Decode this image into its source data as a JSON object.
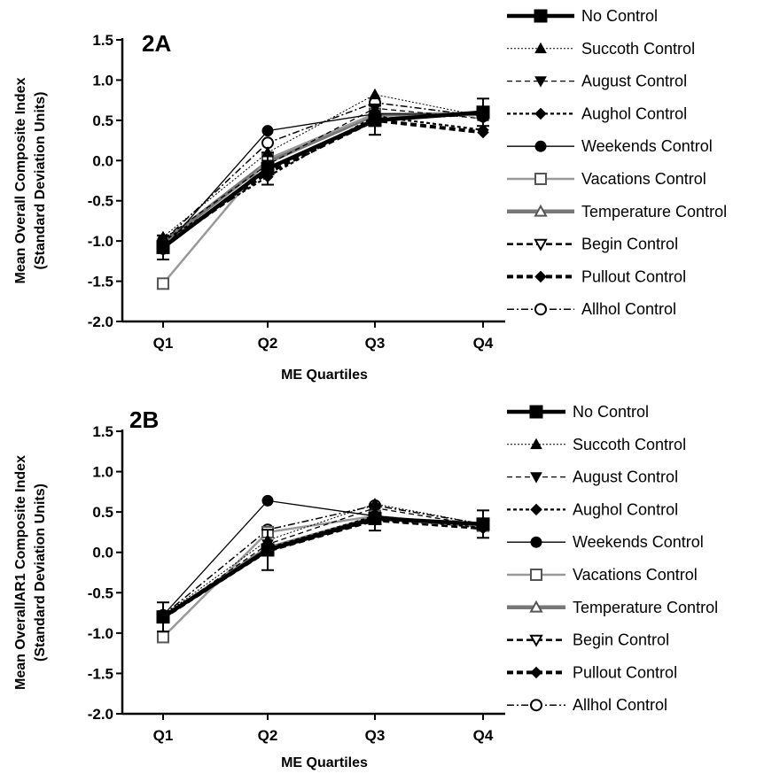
{
  "chart_data": [
    {
      "type": "line",
      "panel_label": "2A",
      "xlabel": "ME Quartiles",
      "ylabel_line1": "Mean Overall Composite Index",
      "ylabel_line2": "(Standard Deviation Units)",
      "categories": [
        "Q1",
        "Q2",
        "Q3",
        "Q4"
      ],
      "ylim": [
        -2.0,
        1.5
      ],
      "yticks": [
        "1.5",
        "1.0",
        "0.5",
        "0.0",
        "-0.5",
        "-1.0",
        "-1.5",
        "-2.0"
      ],
      "legend_position": "right",
      "series": [
        {
          "name": "No Control",
          "values": [
            -1.08,
            -0.1,
            0.5,
            0.6
          ],
          "error": [
            0.15,
            0.2,
            0.18,
            0.17
          ]
        },
        {
          "name": "Succoth Control",
          "values": [
            -0.95,
            0.1,
            0.82,
            0.55
          ]
        },
        {
          "name": "August Control",
          "values": [
            -0.98,
            -0.05,
            0.65,
            0.52
          ]
        },
        {
          "name": "Aughol Control",
          "values": [
            -1.0,
            -0.2,
            0.55,
            0.38
          ]
        },
        {
          "name": "Weekends Control",
          "values": [
            -1.1,
            0.37,
            0.58,
            0.57
          ]
        },
        {
          "name": "Vacations Control",
          "values": [
            -1.53,
            0.02,
            0.58,
            0.58
          ]
        },
        {
          "name": "Temperature Control",
          "values": [
            -1.02,
            -0.02,
            0.57,
            0.58
          ]
        },
        {
          "name": "Begin Control",
          "values": [
            -1.05,
            -0.12,
            0.52,
            0.57
          ]
        },
        {
          "name": "Pullout Control",
          "values": [
            -1.06,
            -0.15,
            0.5,
            0.35
          ]
        },
        {
          "name": "Allhol Control",
          "values": [
            -1.0,
            0.22,
            0.72,
            0.55
          ]
        }
      ]
    },
    {
      "type": "line",
      "panel_label": "2B",
      "xlabel": "ME Quartiles",
      "ylabel_line1": "Mean OverallAR1 Composite Index",
      "ylabel_line2": "(Standard Deviation Units)",
      "categories": [
        "Q1",
        "Q2",
        "Q3",
        "Q4"
      ],
      "ylim": [
        -2.0,
        1.5
      ],
      "yticks": [
        "1.5",
        "1.0",
        "0.5",
        "0.0",
        "-0.5",
        "-1.0",
        "-1.5",
        "-2.0"
      ],
      "legend_position": "right",
      "series": [
        {
          "name": "No Control",
          "values": [
            -0.8,
            0.03,
            0.42,
            0.35
          ],
          "error": [
            0.18,
            0.25,
            0.15,
            0.17
          ]
        },
        {
          "name": "Succoth Control",
          "values": [
            -0.78,
            0.15,
            0.6,
            0.35
          ]
        },
        {
          "name": "August Control",
          "values": [
            -0.8,
            0.1,
            0.55,
            0.33
          ]
        },
        {
          "name": "Aughol Control",
          "values": [
            -0.82,
            0.05,
            0.45,
            0.3
          ]
        },
        {
          "name": "Weekends Control",
          "values": [
            -0.78,
            0.64,
            0.45,
            0.33
          ]
        },
        {
          "name": "Vacations Control",
          "values": [
            -1.05,
            0.25,
            0.45,
            0.33
          ]
        },
        {
          "name": "Temperature Control",
          "values": [
            -0.8,
            0.05,
            0.43,
            0.33
          ]
        },
        {
          "name": "Begin Control",
          "values": [
            -0.82,
            0.02,
            0.4,
            0.32
          ]
        },
        {
          "name": "Pullout Control",
          "values": [
            -0.8,
            0.02,
            0.4,
            0.3
          ]
        },
        {
          "name": "Allhol Control",
          "values": [
            -0.78,
            0.28,
            0.58,
            0.35
          ]
        }
      ]
    }
  ]
}
